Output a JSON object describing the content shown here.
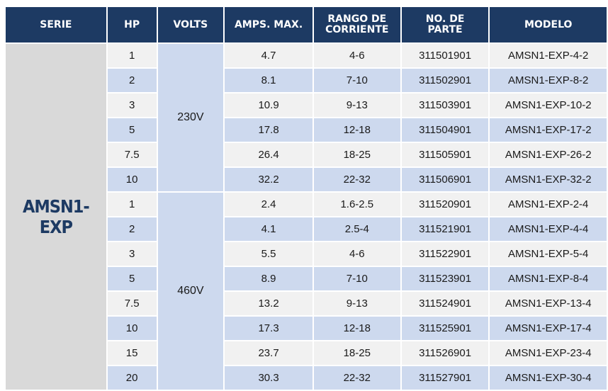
{
  "table": {
    "headers": {
      "serie": "SERIE",
      "hp": "HP",
      "volts": "VOLTS",
      "amps": "AMPS. MAX.",
      "rango_line1": "RANGO DE",
      "rango_line2": "CORRIENTE",
      "parte_line1": "NO. DE",
      "parte_line2": "PARTE",
      "modelo": "MODELO"
    },
    "serie": "AMSN1-EXP",
    "volt_groups": [
      "230V",
      "460V"
    ],
    "rows": [
      {
        "hp": "1",
        "amps": "4.7",
        "rango": "4-6",
        "parte": "311501901",
        "modelo": "AMSN1-EXP-4-2"
      },
      {
        "hp": "2",
        "amps": "8.1",
        "rango": "7-10",
        "parte": "311502901",
        "modelo": "AMSN1-EXP-8-2"
      },
      {
        "hp": "3",
        "amps": "10.9",
        "rango": "9-13",
        "parte": "311503901",
        "modelo": "AMSN1-EXP-10-2"
      },
      {
        "hp": "5",
        "amps": "17.8",
        "rango": "12-18",
        "parte": "311504901",
        "modelo": "AMSN1-EXP-17-2"
      },
      {
        "hp": "7.5",
        "amps": "26.4",
        "rango": "18-25",
        "parte": "311505901",
        "modelo": "AMSN1-EXP-26-2"
      },
      {
        "hp": "10",
        "amps": "32.2",
        "rango": "22-32",
        "parte": "311506901",
        "modelo": "AMSN1-EXP-32-2"
      },
      {
        "hp": "1",
        "amps": "2.4",
        "rango": "1.6-2.5",
        "parte": "311520901",
        "modelo": "AMSN1-EXP-2-4"
      },
      {
        "hp": "2",
        "amps": "4.1",
        "rango": "2.5-4",
        "parte": "311521901",
        "modelo": "AMSN1-EXP-4-4"
      },
      {
        "hp": "3",
        "amps": "5.5",
        "rango": "4-6",
        "parte": "311522901",
        "modelo": "AMSN1-EXP-5-4"
      },
      {
        "hp": "5",
        "amps": "8.9",
        "rango": "7-10",
        "parte": "311523901",
        "modelo": "AMSN1-EXP-8-4"
      },
      {
        "hp": "7.5",
        "amps": "13.2",
        "rango": "9-13",
        "parte": "311524901",
        "modelo": "AMSN1-EXP-13-4"
      },
      {
        "hp": "10",
        "amps": "17.3",
        "rango": "12-18",
        "parte": "311525901",
        "modelo": "AMSN1-EXP-17-4"
      },
      {
        "hp": "15",
        "amps": "23.7",
        "rango": "18-25",
        "parte": "311526901",
        "modelo": "AMSN1-EXP-23-4"
      },
      {
        "hp": "20",
        "amps": "30.3",
        "rango": "22-32",
        "parte": "311527901",
        "modelo": "AMSN1-EXP-30-4"
      }
    ],
    "colors": {
      "header_bg": "#1d3a63",
      "header_text": "#ffffff",
      "row_light": "#f1f1f1",
      "row_blue": "#cdd9ee",
      "serie_bg": "#d9d9d9",
      "serie_text": "#1d3a63"
    }
  }
}
